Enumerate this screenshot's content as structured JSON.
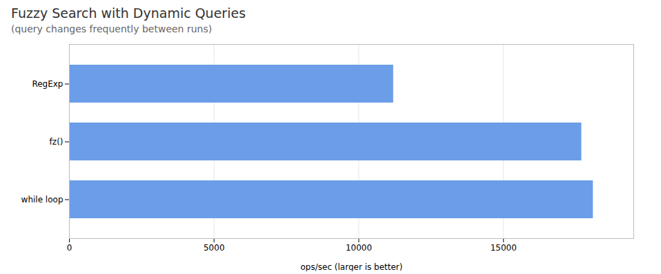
{
  "chart_data": {
    "type": "bar",
    "orientation": "horizontal",
    "title": "Fuzzy Search with Dynamic Queries",
    "subtitle": "(query changes frequently between runs)",
    "categories": [
      "RegExp",
      "fz()",
      "while loop"
    ],
    "values": [
      11200,
      17700,
      18100
    ],
    "color": "#6b9de8",
    "xlabel": "ops/sec (larger is better)",
    "xlim": [
      0,
      19500
    ],
    "xticks": [
      0,
      5000,
      10000,
      15000
    ],
    "grid": true
  }
}
